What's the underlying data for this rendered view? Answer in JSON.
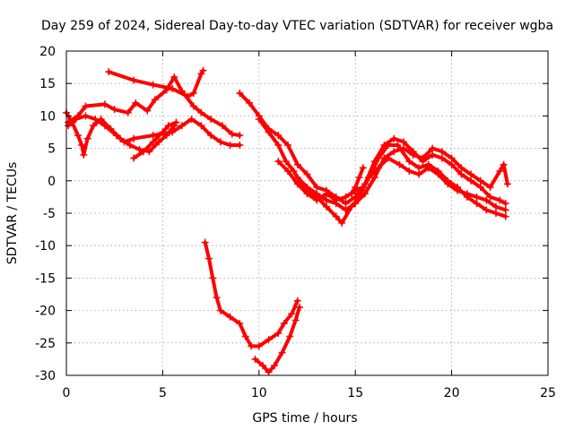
{
  "chart_data": {
    "type": "scatter",
    "title": "Day 259 of 2024, Sidereal Day-to-day VTEC variation (SDTVAR) for receiver wgba",
    "xlabel": "GPS time / hours",
    "ylabel": "SDTVAR / TECUs",
    "xlim": [
      0,
      25
    ],
    "ylim": [
      -30,
      20
    ],
    "xticks": [
      0,
      5,
      10,
      15,
      20,
      25
    ],
    "yticks": [
      -30,
      -25,
      -20,
      -15,
      -10,
      -5,
      0,
      5,
      10,
      15,
      20
    ],
    "grid": true,
    "marker": "plus",
    "color": "#ff0000",
    "series": [
      {
        "name": "trace-a",
        "points": [
          [
            2.2,
            16.8
          ],
          [
            3.5,
            15.5
          ],
          [
            4.5,
            14.8
          ],
          [
            5.5,
            14.2
          ],
          [
            6.3,
            13.0
          ],
          [
            6.6,
            13.5
          ],
          [
            7.0,
            16.5
          ],
          [
            7.1,
            17.0
          ]
        ]
      },
      {
        "name": "trace-b",
        "points": [
          [
            0.1,
            9.0
          ],
          [
            0.6,
            10.0
          ],
          [
            1.0,
            11.5
          ],
          [
            2.0,
            11.8
          ],
          [
            2.5,
            11.0
          ],
          [
            3.2,
            10.5
          ],
          [
            3.6,
            12.0
          ],
          [
            4.2,
            10.8
          ],
          [
            4.6,
            12.5
          ],
          [
            5.2,
            14.0
          ],
          [
            5.6,
            16.0
          ],
          [
            6.0,
            13.8
          ],
          [
            6.6,
            11.5
          ],
          [
            7.0,
            10.5
          ],
          [
            7.5,
            9.5
          ],
          [
            8.1,
            8.5
          ],
          [
            8.6,
            7.2
          ],
          [
            9.0,
            7.0
          ]
        ]
      },
      {
        "name": "trace-c",
        "points": [
          [
            0.1,
            8.5
          ],
          [
            0.5,
            9.5
          ],
          [
            1.0,
            10.0
          ],
          [
            1.5,
            9.5
          ],
          [
            2.0,
            8.5
          ],
          [
            2.6,
            7.0
          ],
          [
            3.0,
            6.0
          ],
          [
            3.5,
            6.5
          ],
          [
            4.5,
            7.0
          ],
          [
            5.5,
            7.5
          ],
          [
            6.0,
            8.5
          ],
          [
            6.5,
            9.5
          ],
          [
            7.0,
            8.5
          ],
          [
            7.5,
            7.0
          ],
          [
            8.0,
            6.0
          ],
          [
            8.5,
            5.5
          ],
          [
            9.0,
            5.5
          ]
        ]
      },
      {
        "name": "trace-d",
        "points": [
          [
            0.0,
            10.5
          ],
          [
            0.3,
            9.0
          ],
          [
            0.6,
            7.0
          ],
          [
            0.8,
            5.5
          ],
          [
            0.9,
            4.0
          ],
          [
            1.1,
            6.5
          ],
          [
            1.4,
            8.5
          ],
          [
            1.8,
            9.5
          ],
          [
            2.3,
            8.0
          ],
          [
            2.8,
            6.5
          ],
          [
            3.3,
            5.5
          ],
          [
            3.8,
            4.8
          ],
          [
            4.3,
            4.5
          ],
          [
            4.8,
            6.0
          ],
          [
            5.2,
            7.0
          ],
          [
            5.6,
            8.5
          ]
        ]
      },
      {
        "name": "trace-e",
        "points": [
          [
            3.5,
            3.5
          ],
          [
            4.0,
            4.5
          ],
          [
            4.5,
            6.0
          ],
          [
            5.0,
            7.5
          ],
          [
            5.3,
            8.5
          ],
          [
            5.7,
            9.0
          ]
        ]
      },
      {
        "name": "trace-f",
        "points": [
          [
            9.0,
            13.5
          ],
          [
            9.5,
            12.0
          ],
          [
            10.0,
            10.0
          ],
          [
            10.5,
            8.0
          ],
          [
            11.0,
            7.0
          ],
          [
            11.5,
            5.5
          ],
          [
            12.0,
            2.5
          ],
          [
            12.5,
            1.0
          ],
          [
            13.0,
            -1.0
          ],
          [
            13.5,
            -1.5
          ],
          [
            14.0,
            -2.5
          ],
          [
            14.5,
            -3.5
          ],
          [
            15.0,
            -2.5
          ],
          [
            15.5,
            -0.5
          ],
          [
            16.0,
            3.0
          ],
          [
            16.5,
            5.5
          ],
          [
            17.0,
            6.5
          ],
          [
            17.5,
            6.0
          ],
          [
            18.0,
            4.5
          ],
          [
            18.5,
            3.0
          ],
          [
            19.0,
            4.0
          ],
          [
            19.5,
            3.5
          ],
          [
            20.0,
            2.5
          ],
          [
            20.5,
            1.0
          ],
          [
            21.0,
            0.0
          ],
          [
            21.5,
            -1.0
          ],
          [
            22.0,
            -2.5
          ],
          [
            22.5,
            -3.0
          ],
          [
            22.8,
            -3.5
          ]
        ]
      },
      {
        "name": "trace-g",
        "points": [
          [
            10.0,
            9.5
          ],
          [
            10.5,
            7.5
          ],
          [
            11.0,
            5.5
          ],
          [
            11.4,
            3.0
          ],
          [
            11.8,
            1.5
          ],
          [
            12.2,
            -0.5
          ],
          [
            12.6,
            -1.5
          ],
          [
            13.0,
            -2.5
          ],
          [
            13.5,
            -4.0
          ],
          [
            14.0,
            -5.5
          ],
          [
            14.3,
            -6.5
          ],
          [
            14.8,
            -4.0
          ],
          [
            15.2,
            -2.5
          ],
          [
            15.7,
            0.5
          ],
          [
            16.2,
            3.5
          ],
          [
            16.7,
            5.5
          ],
          [
            17.2,
            5.5
          ],
          [
            17.8,
            3.0
          ],
          [
            18.3,
            2.0
          ],
          [
            18.8,
            2.5
          ],
          [
            19.3,
            1.5
          ],
          [
            19.8,
            0.0
          ],
          [
            20.3,
            -1.0
          ],
          [
            20.8,
            -2.5
          ],
          [
            21.3,
            -3.5
          ],
          [
            21.8,
            -4.5
          ],
          [
            22.3,
            -5.0
          ],
          [
            22.8,
            -5.5
          ]
        ]
      },
      {
        "name": "trace-h",
        "points": [
          [
            12.0,
            0.5
          ],
          [
            12.5,
            -1.0
          ],
          [
            13.0,
            -2.0
          ],
          [
            13.5,
            -3.0
          ],
          [
            14.0,
            -3.5
          ],
          [
            14.5,
            -4.5
          ],
          [
            15.0,
            -3.5
          ],
          [
            15.5,
            -2.0
          ],
          [
            16.0,
            0.5
          ],
          [
            16.5,
            3.5
          ],
          [
            17.0,
            4.5
          ],
          [
            17.5,
            5.0
          ],
          [
            18.0,
            4.0
          ],
          [
            18.5,
            3.5
          ],
          [
            19.0,
            5.0
          ],
          [
            19.5,
            4.5
          ],
          [
            20.0,
            3.5
          ],
          [
            20.5,
            2.0
          ],
          [
            21.0,
            1.0
          ],
          [
            21.5,
            0.0
          ],
          [
            22.0,
            -1.0
          ],
          [
            22.5,
            1.5
          ],
          [
            22.7,
            2.5
          ],
          [
            22.9,
            -0.5
          ]
        ]
      },
      {
        "name": "trace-i",
        "points": [
          [
            11.0,
            3.0
          ],
          [
            11.5,
            1.5
          ],
          [
            12.0,
            -0.5
          ],
          [
            12.5,
            -2.0
          ],
          [
            13.0,
            -3.0
          ],
          [
            13.5,
            -2.0
          ],
          [
            14.0,
            -3.0
          ],
          [
            14.5,
            -2.5
          ],
          [
            15.0,
            -1.5
          ],
          [
            15.4,
            -1.0
          ],
          [
            15.7,
            0.5
          ],
          [
            16.2,
            2.0
          ],
          [
            16.7,
            3.5
          ],
          [
            17.3,
            2.5
          ],
          [
            17.8,
            1.5
          ],
          [
            18.3,
            1.0
          ],
          [
            18.8,
            2.0
          ],
          [
            19.3,
            1.0
          ],
          [
            19.8,
            -0.5
          ],
          [
            20.3,
            -1.5
          ],
          [
            20.8,
            -2.0
          ],
          [
            21.3,
            -2.5
          ],
          [
            21.8,
            -3.0
          ],
          [
            22.3,
            -4.0
          ],
          [
            22.8,
            -4.5
          ]
        ]
      },
      {
        "name": "trace-j",
        "points": [
          [
            14.8,
            -2.0
          ],
          [
            15.0,
            -1.0
          ],
          [
            15.2,
            0.5
          ],
          [
            15.4,
            2.0
          ]
        ]
      },
      {
        "name": "trace-k",
        "points": [
          [
            7.2,
            -9.5
          ],
          [
            7.4,
            -12.0
          ],
          [
            7.6,
            -15.0
          ],
          [
            7.8,
            -18.0
          ],
          [
            8.0,
            -20.0
          ],
          [
            8.5,
            -21.0
          ],
          [
            9.0,
            -22.0
          ],
          [
            9.3,
            -24.0
          ],
          [
            9.6,
            -25.5
          ],
          [
            10.0,
            -25.5
          ],
          [
            10.5,
            -24.5
          ],
          [
            11.0,
            -23.5
          ],
          [
            11.3,
            -22.0
          ],
          [
            11.7,
            -20.5
          ],
          [
            12.0,
            -18.5
          ]
        ]
      },
      {
        "name": "trace-l",
        "points": [
          [
            9.8,
            -27.5
          ],
          [
            10.2,
            -28.5
          ],
          [
            10.5,
            -29.5
          ],
          [
            10.8,
            -28.5
          ],
          [
            11.2,
            -26.5
          ],
          [
            11.6,
            -24.0
          ],
          [
            11.9,
            -21.5
          ],
          [
            12.1,
            -19.5
          ]
        ]
      }
    ]
  }
}
